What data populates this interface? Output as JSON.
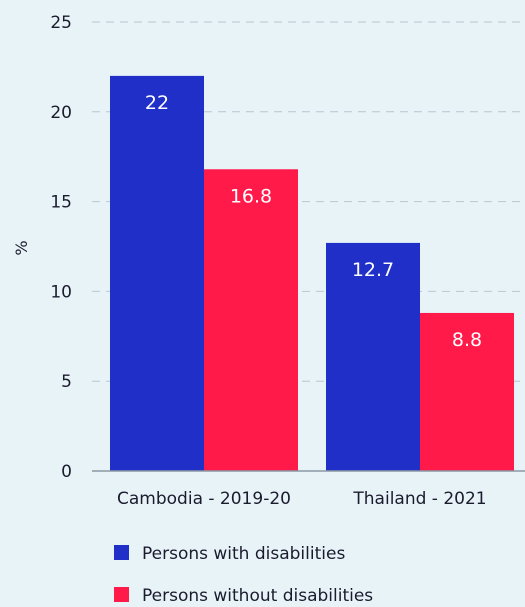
{
  "chart_data": {
    "type": "bar",
    "categories": [
      "Cambodia - 2019-20",
      "Thailand - 2021"
    ],
    "series": [
      {
        "name": "Persons with disabilities",
        "values": [
          22,
          12.7
        ],
        "color": "#1f2fc8"
      },
      {
        "name": "Persons without disabilities",
        "values": [
          16.8,
          8.8
        ],
        "color": "#ff1a4a"
      }
    ],
    "data_labels": [
      [
        "22",
        "12.7"
      ],
      [
        "16.8",
        "8.8"
      ]
    ],
    "title": "",
    "xlabel": "",
    "ylabel": "%",
    "ylim": [
      0,
      25
    ],
    "yticks": [
      "0",
      "5",
      "10",
      "15",
      "20",
      "25"
    ],
    "grid": "horizontal dashed",
    "legend_position": "bottom-left",
    "colors": {
      "background": "#e8f3f8",
      "grid": "#b9c6cf",
      "axis": "#8a98a3",
      "text": "#1b1b2e"
    }
  }
}
